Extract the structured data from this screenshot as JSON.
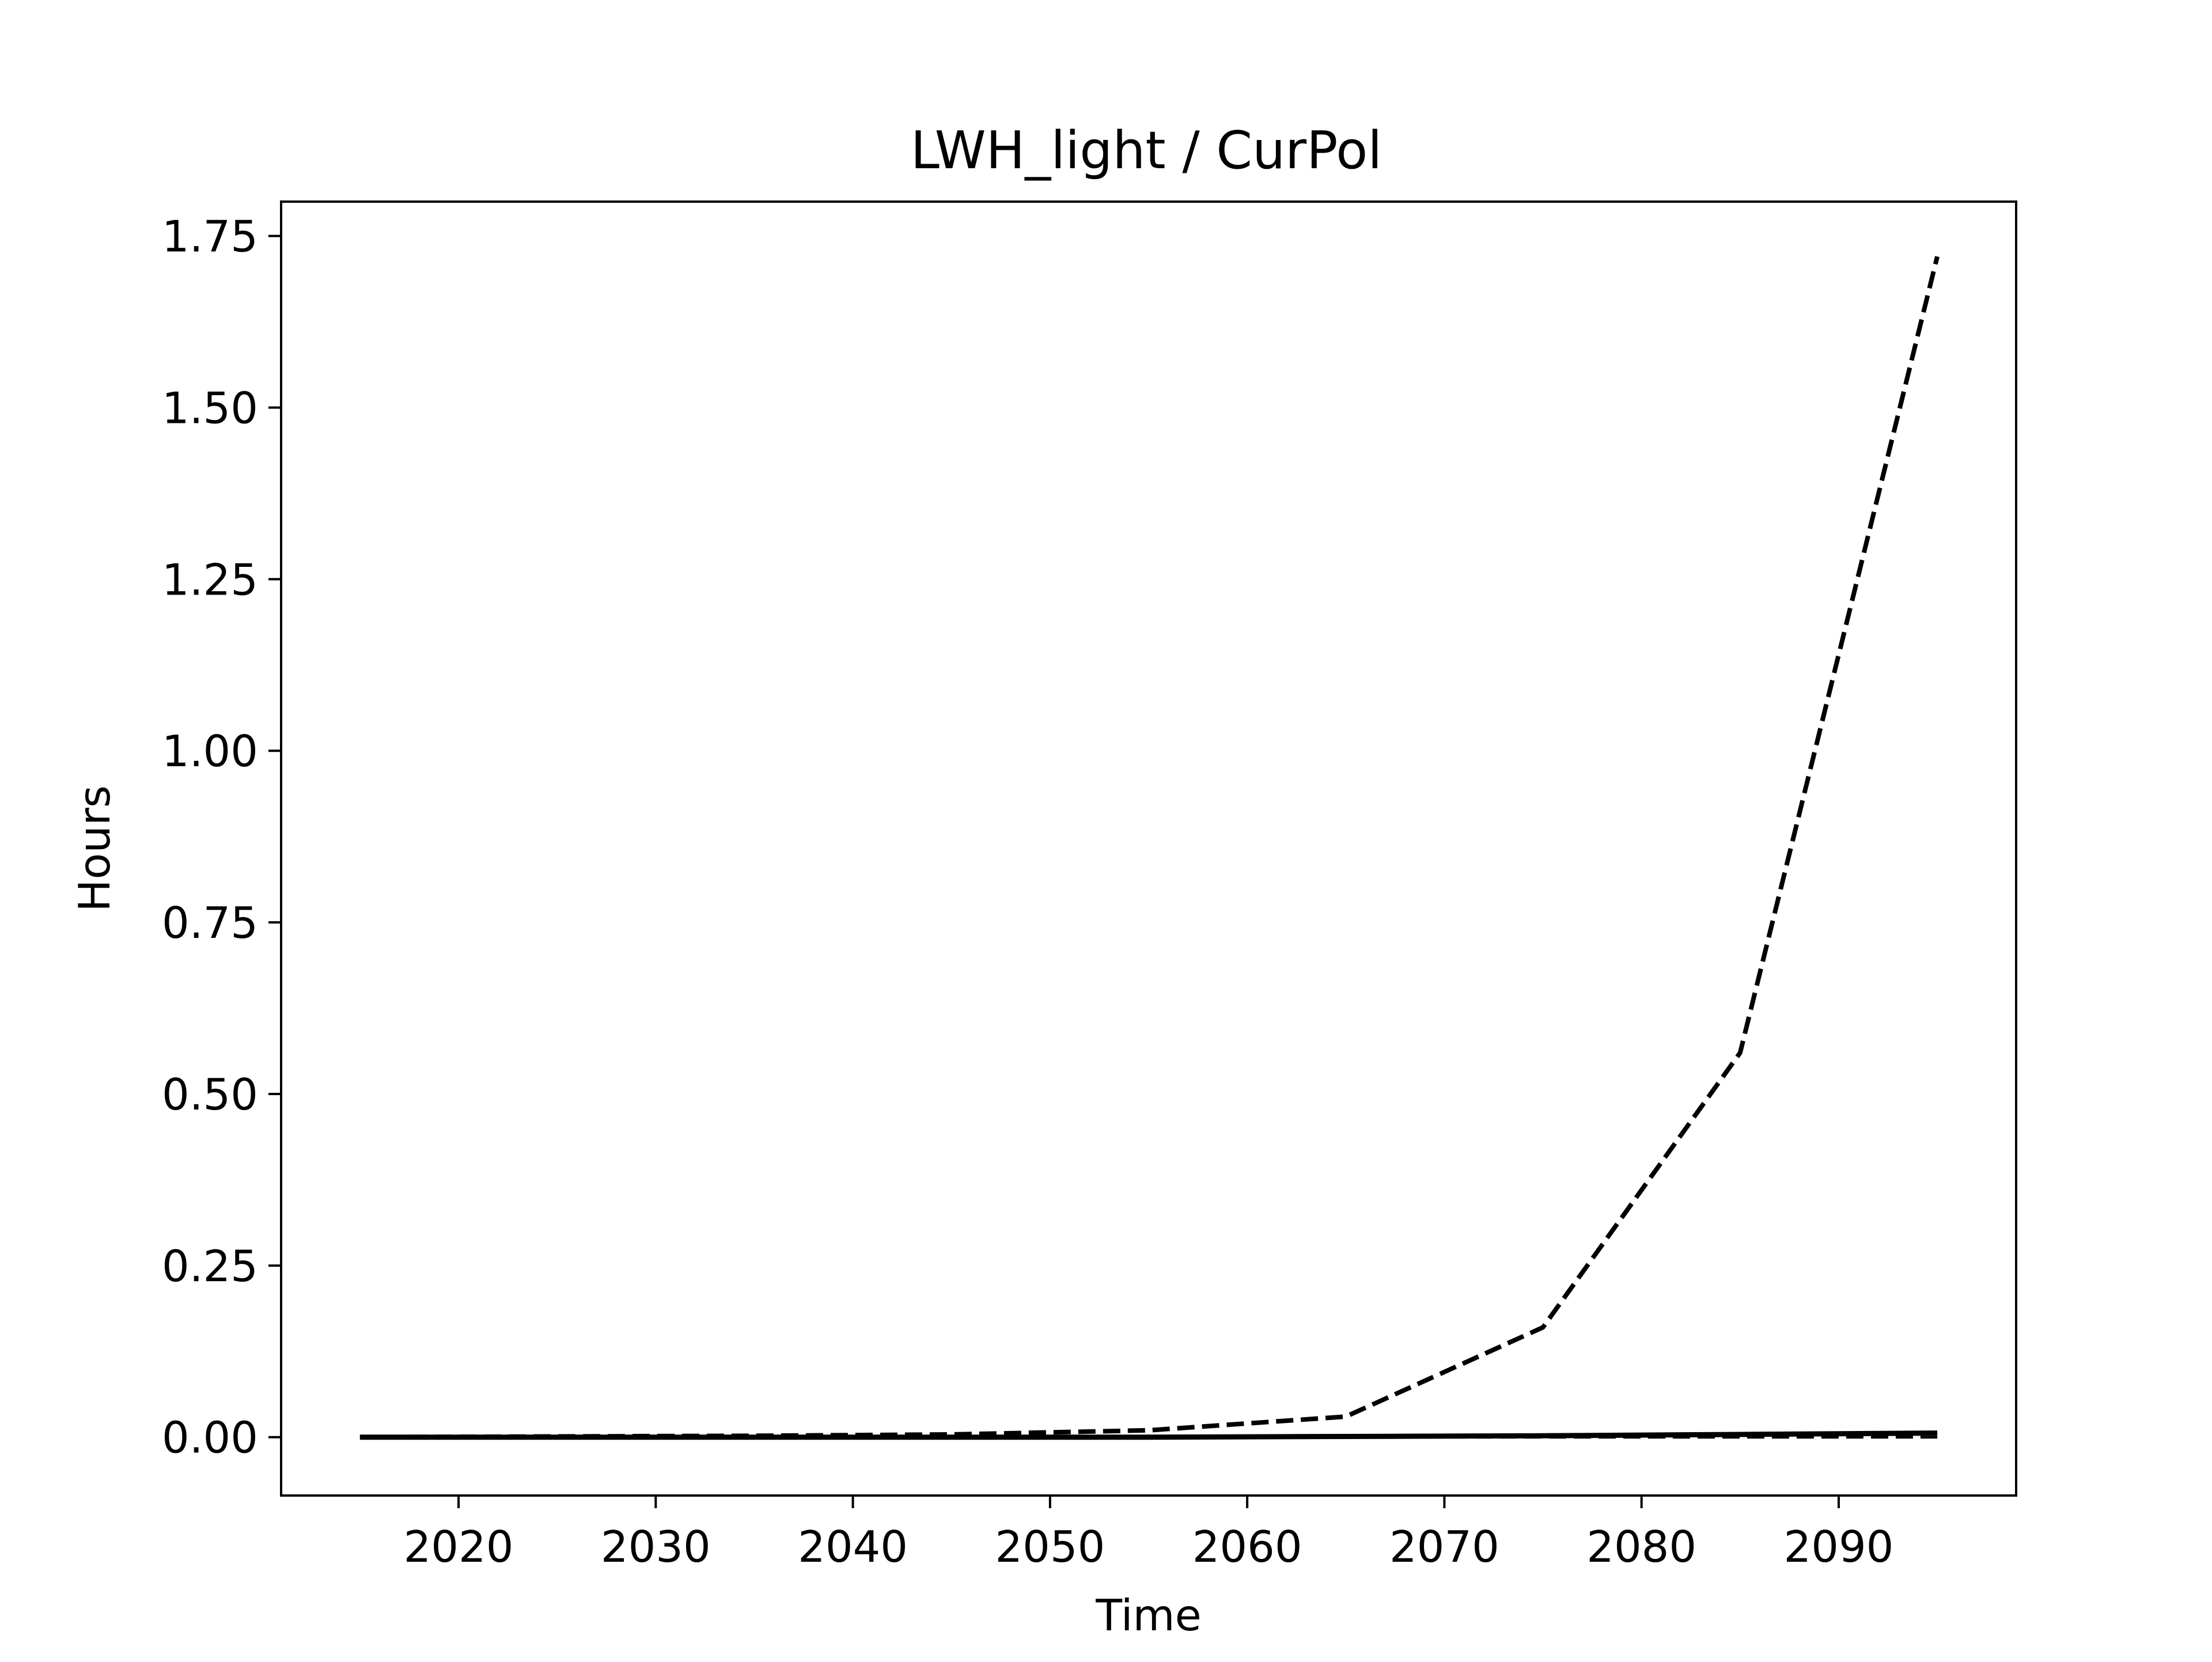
{
  "chart_data": {
    "type": "line",
    "title": "LWH_light / CurPol",
    "xlabel": "Time",
    "ylabel": "Hours",
    "xlim": [
      2011,
      2099
    ],
    "ylim": [
      -0.085,
      1.8
    ],
    "xticks": [
      2020,
      2030,
      2040,
      2050,
      2060,
      2070,
      2080,
      2090
    ],
    "yticks": [
      0.0,
      0.25,
      0.5,
      0.75,
      1.0,
      1.25,
      1.5,
      1.75
    ],
    "ytick_labels": [
      "0.00",
      "0.25",
      "0.50",
      "0.75",
      "1.00",
      "1.25",
      "1.50",
      "1.75"
    ],
    "grid": false,
    "legend": "none",
    "x": [
      2015,
      2025,
      2035,
      2045,
      2055,
      2065,
      2075,
      2085,
      2095
    ],
    "series": [
      {
        "style": "dashed",
        "color": "#000000",
        "values": [
          0.0,
          0.001,
          0.002,
          0.004,
          0.01,
          0.03,
          0.16,
          0.56,
          1.72
        ]
      },
      {
        "style": "solid",
        "color": "#000000",
        "values": [
          0.0,
          0.0,
          0.0,
          0.0,
          0.0,
          0.001,
          0.002,
          0.004,
          0.006
        ]
      },
      {
        "style": "dashed-thin",
        "color": "#000000",
        "values": [
          0.0,
          0.0,
          0.0,
          0.0,
          0.0,
          0.0,
          0.0,
          0.0,
          0.0
        ]
      }
    ]
  }
}
